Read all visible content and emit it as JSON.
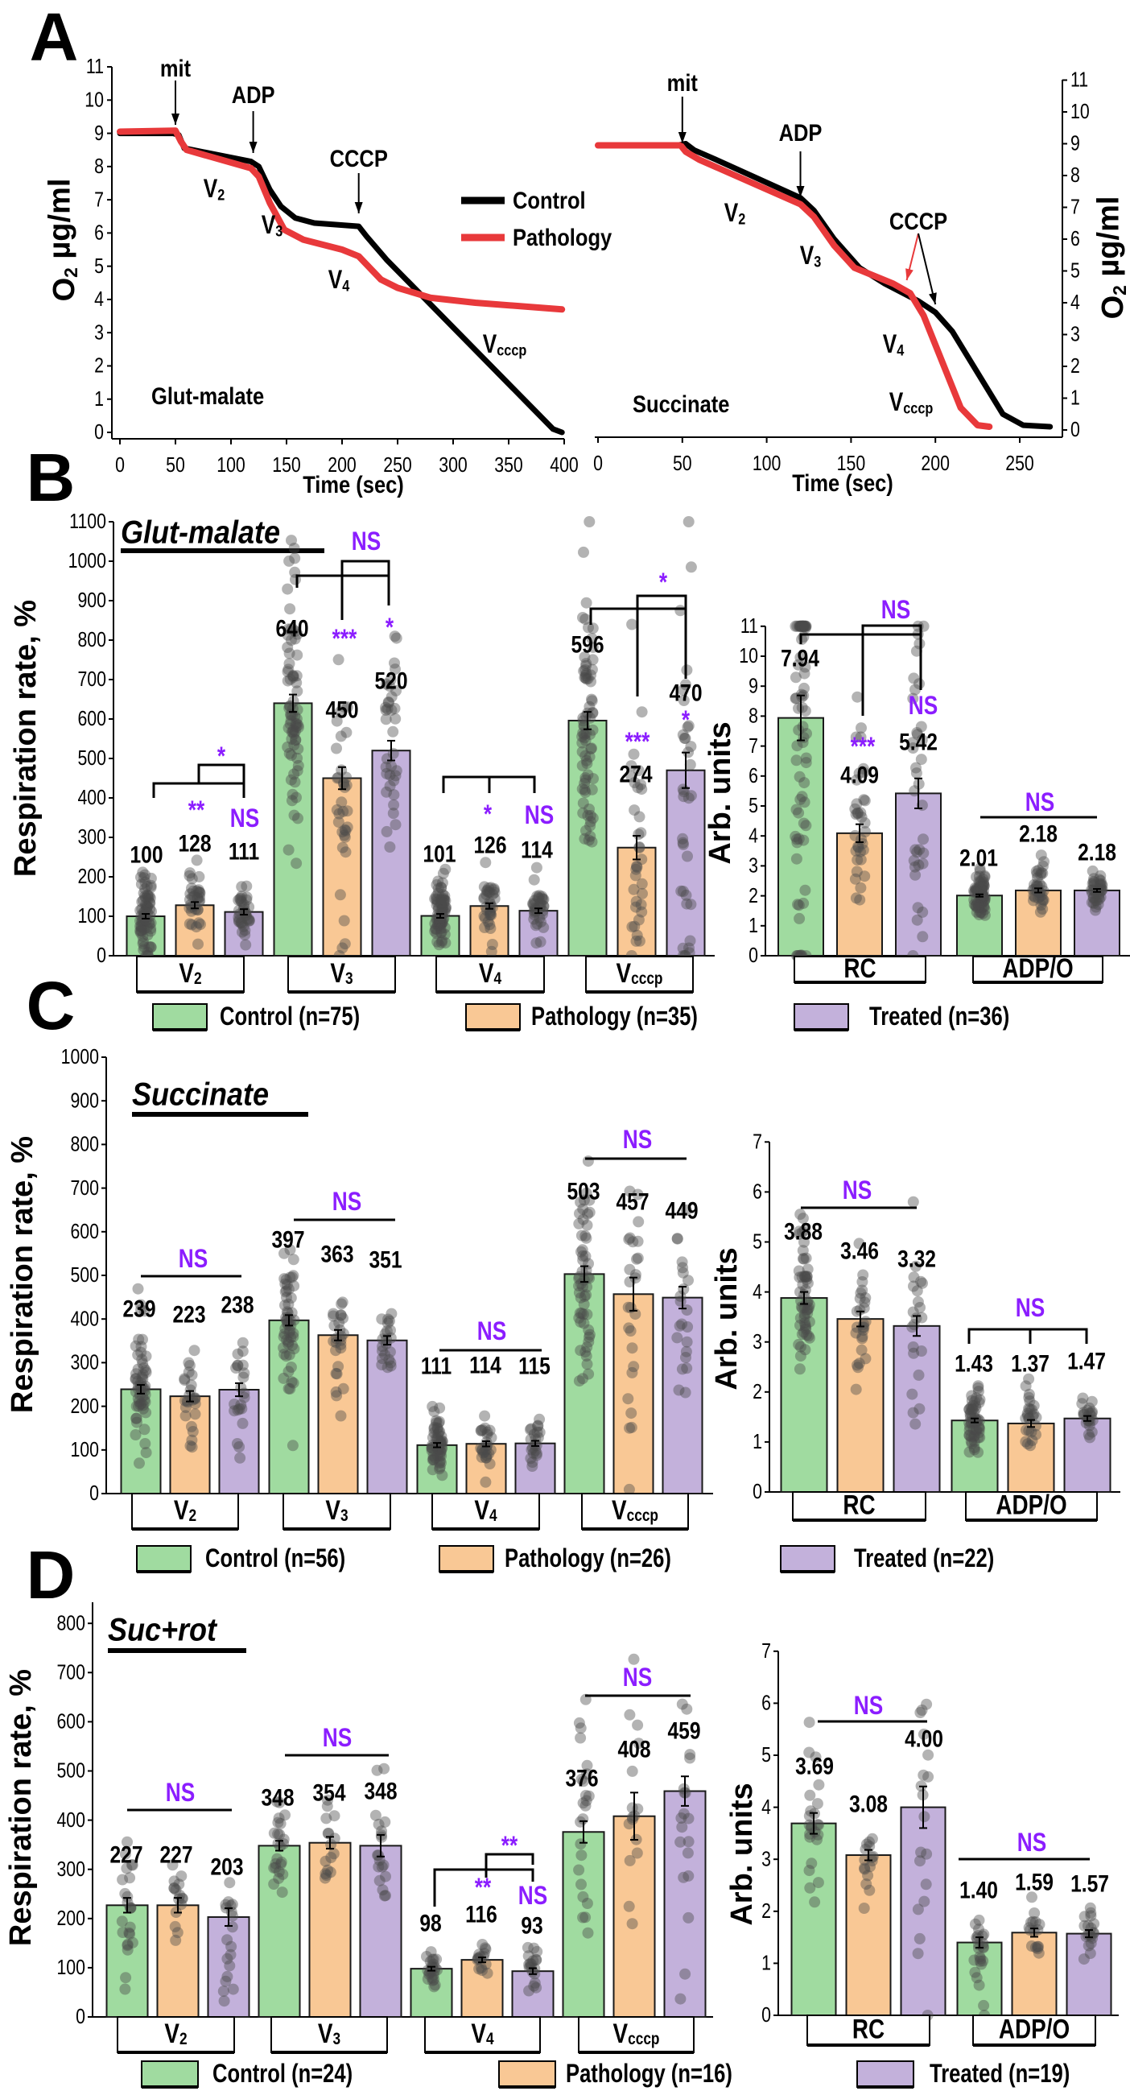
{
  "panel_letters": {
    "A": "A",
    "B": "B",
    "C": "C",
    "D": "D"
  },
  "colors": {
    "control": "#a0dba0",
    "pathology": "#f9c895",
    "treated": "#c3b1db",
    "significance": "#8b1dff",
    "trace_control": "#000000",
    "trace_pathology": "#e8393b",
    "points": "#4a4a4a"
  },
  "legends": {
    "B": [
      "Control (n=75)",
      "Pathology (n=35)",
      "Treated (n=36)"
    ],
    "C": [
      "Control (n=56)",
      "Pathology (n=26)",
      "Treated (n=22)"
    ],
    "D": [
      "Control (n=24)",
      "Pathology (n=16)",
      "Treated (n=19)"
    ]
  },
  "chart_data": [
    {
      "type": "line",
      "panel": "A",
      "xlabel": "Time (sec)",
      "ylabel": "O",
      "ylabel_sub": "2",
      "ylabel_unit": " µg/ml",
      "substrate_label": "Glut-malate",
      "xlim": [
        0,
        400
      ],
      "ylim": [
        0,
        11
      ],
      "xticks": [
        0,
        50,
        100,
        150,
        200,
        250,
        300,
        350,
        400
      ],
      "yticks": [
        0,
        1,
        2,
        3,
        4,
        5,
        6,
        7,
        8,
        9,
        10,
        11
      ],
      "legend_placement": "center-right",
      "series": [
        {
          "name": "Control",
          "x": [
            0,
            48,
            53,
            58,
            118,
            125,
            135,
            145,
            158,
            175,
            215,
            222,
            240,
            390,
            398
          ],
          "y": [
            9,
            9,
            8.95,
            8.55,
            8.15,
            8.0,
            7.3,
            6.8,
            6.45,
            6.3,
            6.2,
            5.9,
            5.2,
            0.1,
            0
          ]
        },
        {
          "name": "Pathology",
          "x": [
            0,
            50,
            55,
            60,
            118,
            125,
            135,
            148,
            165,
            200,
            215,
            235,
            250,
            280,
            320,
            398
          ],
          "y": [
            9.05,
            9.08,
            8.75,
            8.5,
            7.95,
            7.7,
            6.9,
            6.1,
            5.8,
            5.5,
            5.3,
            4.6,
            4.35,
            4.05,
            3.9,
            3.7
          ]
        }
      ],
      "events": [
        {
          "label": "mit",
          "x": [
            50
          ]
        },
        {
          "label": "ADP",
          "x": [
            120
          ]
        },
        {
          "label": "CCCP",
          "x": [
            215
          ]
        }
      ],
      "phase_labels": [
        {
          "main": "V",
          "sub": "2"
        },
        {
          "main": "V",
          "sub": "3"
        },
        {
          "main": "V",
          "sub": "4"
        },
        {
          "main": "V",
          "sub": "cccp"
        }
      ]
    },
    {
      "type": "line",
      "panel": "A",
      "xlabel": "Time (sec)",
      "ylabel": "O",
      "ylabel_sub": "2",
      "ylabel_unit": " µg/ml",
      "substrate_label": "Succinate",
      "xlim": [
        0,
        270
      ],
      "ylim": [
        0,
        11
      ],
      "xticks": [
        0,
        50,
        100,
        150,
        200,
        250
      ],
      "yticks": [
        0,
        1,
        2,
        3,
        4,
        5,
        6,
        7,
        8,
        9,
        10,
        11
      ],
      "series": [
        {
          "name": "Control",
          "x": [
            0,
            47,
            52,
            57,
            70,
            120,
            128,
            140,
            155,
            170,
            190,
            200,
            210,
            240,
            252,
            268
          ],
          "y": [
            8.95,
            8.95,
            9.0,
            8.8,
            8.5,
            7.3,
            6.9,
            6.0,
            5.1,
            4.6,
            4.05,
            3.7,
            3.1,
            0.5,
            0.15,
            0.1
          ]
        },
        {
          "name": "Pathology",
          "x": [
            0,
            49,
            52,
            60,
            120,
            128,
            140,
            152,
            175,
            185,
            193,
            215,
            225,
            232
          ],
          "y": [
            8.95,
            8.95,
            8.75,
            8.5,
            7.1,
            6.7,
            5.8,
            5.1,
            4.6,
            4.3,
            3.6,
            0.7,
            0.15,
            0.1
          ]
        }
      ],
      "events": [
        {
          "label": "mit",
          "x": [
            50
          ]
        },
        {
          "label": "ADP",
          "x": [
            120
          ]
        },
        {
          "label": "CCCP",
          "x": [
            183,
            200
          ]
        }
      ],
      "phase_labels": [
        {
          "main": "V",
          "sub": "2"
        },
        {
          "main": "V",
          "sub": "3"
        },
        {
          "main": "V",
          "sub": "4"
        },
        {
          "main": "V",
          "sub": "cccp"
        }
      ]
    },
    {
      "type": "bar",
      "panel": "B",
      "title": "Glut-malate",
      "ylabel": "Respiration rate, %",
      "ylim": [
        0,
        1100
      ],
      "yticks": [
        0,
        100,
        200,
        300,
        400,
        500,
        600,
        700,
        800,
        900,
        1000,
        1100
      ],
      "n": [
        75,
        35,
        36
      ],
      "groups": [
        {
          "label": "V",
          "label_sub": "2",
          "values": [
            100,
            128,
            111
          ],
          "sem": [
            6,
            8,
            7
          ],
          "value_labels": [
            "100",
            "128",
            "111"
          ],
          "significance": [
            "*",
            "**",
            "NS"
          ]
        },
        {
          "label": "V",
          "label_sub": "3",
          "values": [
            640,
            450,
            520
          ],
          "sem": [
            22,
            28,
            25
          ],
          "value_labels": [
            "640",
            "450",
            "520"
          ],
          "significance": [
            "NS",
            "***",
            "*"
          ]
        },
        {
          "label": "V",
          "label_sub": "4",
          "values": [
            101,
            126,
            114
          ],
          "sem": [
            5,
            7,
            6
          ],
          "value_labels": [
            "101",
            "126",
            "114"
          ],
          "significance": [
            "*",
            "NS"
          ]
        },
        {
          "label": "V",
          "label_sub": "cccp",
          "values": [
            596,
            274,
            470
          ],
          "sem": [
            22,
            30,
            45
          ],
          "value_labels": [
            "596",
            "274",
            "470"
          ],
          "significance": [
            "*",
            "***",
            "*"
          ]
        }
      ]
    },
    {
      "type": "bar",
      "panel": "B",
      "ylabel": "Arb. units",
      "ylim": [
        0,
        11
      ],
      "yticks": [
        0,
        1,
        2,
        3,
        4,
        5,
        6,
        7,
        8,
        9,
        10,
        11
      ],
      "n": [
        75,
        35,
        36
      ],
      "groups": [
        {
          "label": "RC",
          "label_sub": "",
          "values": [
            7.94,
            4.09,
            5.42
          ],
          "sem": [
            0.75,
            0.3,
            0.5
          ],
          "value_labels": [
            "7.94",
            "4.09",
            "5.42"
          ],
          "significance": [
            "NS",
            "***",
            "NS"
          ]
        },
        {
          "label": "ADP/O",
          "label_sub": "",
          "values": [
            2.01,
            2.18,
            2.18
          ],
          "sem": [
            0.04,
            0.07,
            0.05
          ],
          "value_labels": [
            "2.01",
            "2.18",
            "2.18"
          ],
          "significance": [
            "NS"
          ]
        }
      ]
    },
    {
      "type": "bar",
      "panel": "C",
      "title": "Succinate",
      "ylabel": "Respiration rate, %",
      "ylim": [
        0,
        1000
      ],
      "yticks": [
        0,
        100,
        200,
        300,
        400,
        500,
        600,
        700,
        800,
        900,
        1000
      ],
      "n": [
        56,
        26,
        22
      ],
      "groups": [
        {
          "label": "V",
          "label_sub": "2",
          "values": [
            239,
            223,
            238
          ],
          "sem": [
            10,
            12,
            15
          ],
          "value_labels": [
            "239",
            "223",
            "238"
          ],
          "significance": [
            "NS"
          ]
        },
        {
          "label": "V",
          "label_sub": "3",
          "values": [
            397,
            363,
            351
          ],
          "sem": [
            12,
            12,
            10
          ],
          "value_labels": [
            "397",
            "363",
            "351"
          ],
          "significance": [
            "NS"
          ]
        },
        {
          "label": "V",
          "label_sub": "4",
          "values": [
            111,
            114,
            115
          ],
          "sem": [
            5,
            6,
            6
          ],
          "value_labels": [
            "111",
            "114",
            "115"
          ],
          "significance": [
            "NS"
          ]
        },
        {
          "label": "V",
          "label_sub": "cccp",
          "values": [
            503,
            457,
            449
          ],
          "sem": [
            18,
            38,
            25
          ],
          "value_labels": [
            "503",
            "457",
            "449"
          ],
          "significance": [
            "NS"
          ]
        }
      ]
    },
    {
      "type": "bar",
      "panel": "C",
      "ylabel": "Arb. units",
      "ylim": [
        0,
        7
      ],
      "yticks": [
        0,
        1,
        2,
        3,
        4,
        5,
        6,
        7
      ],
      "n": [
        56,
        26,
        22
      ],
      "groups": [
        {
          "label": "RC",
          "label_sub": "",
          "values": [
            3.88,
            3.46,
            3.32
          ],
          "sem": [
            0.12,
            0.15,
            0.2
          ],
          "value_labels": [
            "3.88",
            "3.46",
            "3.32"
          ],
          "significance": [
            "NS"
          ]
        },
        {
          "label": "ADP/O",
          "label_sub": "",
          "values": [
            1.43,
            1.37,
            1.47
          ],
          "sem": [
            0.04,
            0.07,
            0.05
          ],
          "value_labels": [
            "1.43",
            "1.37",
            "1.47"
          ],
          "significance": [
            "NS"
          ]
        }
      ]
    },
    {
      "type": "bar",
      "panel": "D",
      "title": "Suc+rot",
      "ylabel": "Respiration rate, %",
      "ylim": [
        0,
        800
      ],
      "yticks": [
        0,
        100,
        200,
        300,
        400,
        500,
        600,
        700,
        800
      ],
      "n": [
        24,
        16,
        19
      ],
      "groups": [
        {
          "label": "V",
          "label_sub": "2",
          "values": [
            227,
            227,
            203
          ],
          "sem": [
            15,
            15,
            18
          ],
          "value_labels": [
            "227",
            "227",
            "203"
          ],
          "significance": [
            "NS"
          ]
        },
        {
          "label": "V",
          "label_sub": "3",
          "values": [
            348,
            354,
            348
          ],
          "sem": [
            10,
            12,
            22
          ],
          "value_labels": [
            "348",
            "354",
            "348"
          ],
          "significance": [
            "NS"
          ]
        },
        {
          "label": "V",
          "label_sub": "4",
          "values": [
            98,
            116,
            93
          ],
          "sem": [
            4,
            5,
            6
          ],
          "value_labels": [
            "98",
            "116",
            "93"
          ],
          "significance": [
            "**",
            "**",
            "NS"
          ]
        },
        {
          "label": "V",
          "label_sub": "cccp",
          "values": [
            376,
            408,
            459
          ],
          "sem": [
            22,
            48,
            30
          ],
          "value_labels": [
            "376",
            "408",
            "459"
          ],
          "significance": [
            "NS"
          ]
        }
      ]
    },
    {
      "type": "bar",
      "panel": "D",
      "ylabel": "Arb. units",
      "ylim": [
        0,
        7
      ],
      "yticks": [
        0,
        1,
        2,
        3,
        4,
        5,
        6,
        7
      ],
      "n": [
        24,
        16,
        19
      ],
      "groups": [
        {
          "label": "RC",
          "label_sub": "",
          "values": [
            3.69,
            3.08,
            4.0
          ],
          "sem": [
            0.2,
            0.1,
            0.4
          ],
          "value_labels": [
            "3.69",
            "3.08",
            "4.00"
          ],
          "significance": [
            "NS"
          ]
        },
        {
          "label": "ADP/O",
          "label_sub": "",
          "values": [
            1.4,
            1.59,
            1.57
          ],
          "sem": [
            0.1,
            0.08,
            0.07
          ],
          "value_labels": [
            "1.40",
            "1.59",
            "1.57"
          ],
          "significance": [
            "NS"
          ]
        }
      ]
    }
  ]
}
